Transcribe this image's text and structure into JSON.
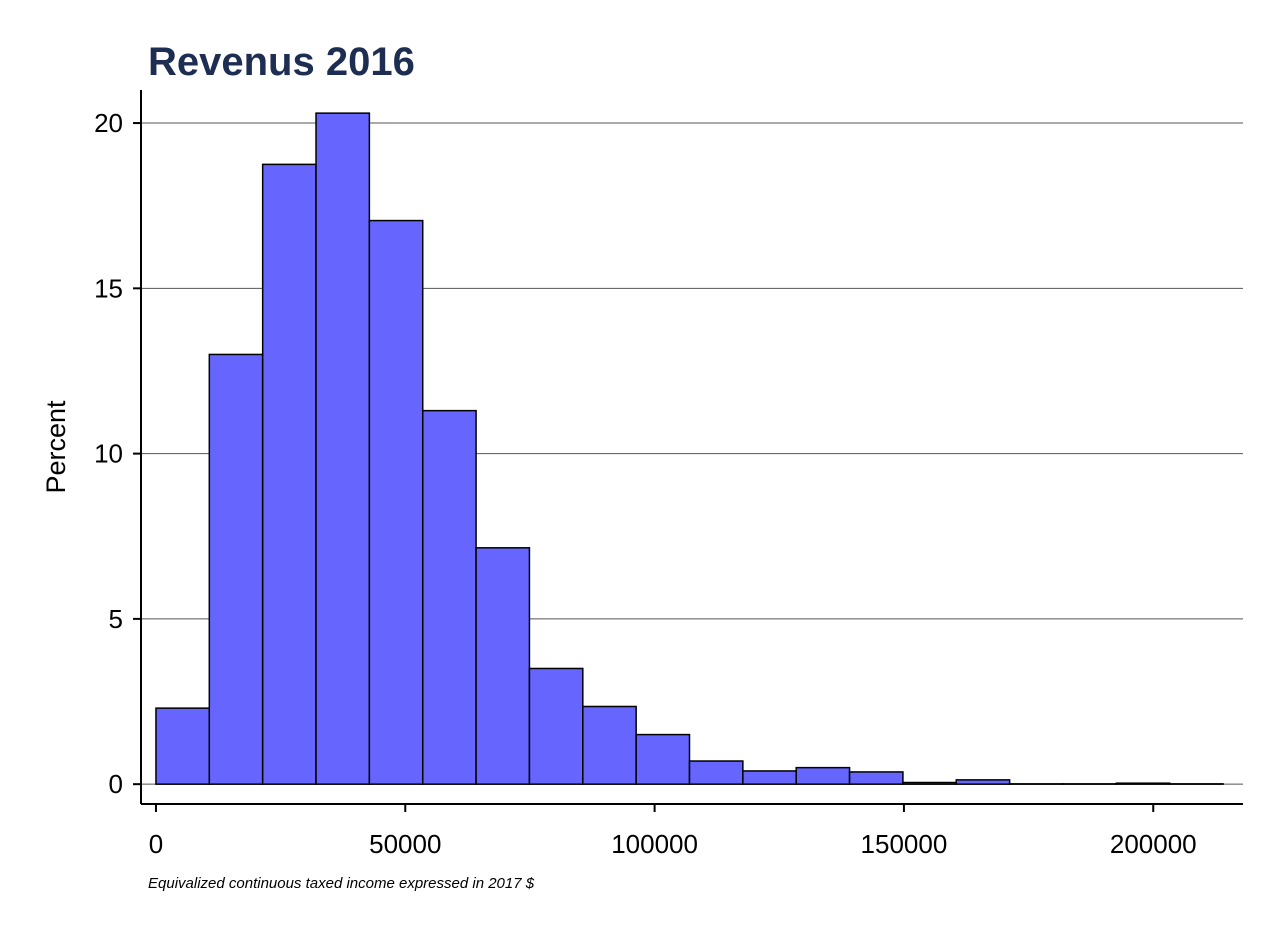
{
  "colors": {
    "bar_fill": "#6666ff",
    "bar_stroke": "#000000",
    "title": "#1e2d52",
    "grid": "#555555",
    "axis": "#000000"
  },
  "chart_data": {
    "type": "bar",
    "title": "Revenus 2016",
    "xlabel": "Equivalized continuous taxed income expressed in 2017 $",
    "ylabel": "Percent",
    "grid": true,
    "x_ticks": [
      0,
      50000,
      100000,
      150000,
      200000
    ],
    "y_ticks": [
      0,
      5,
      10,
      15,
      20
    ],
    "xlim": [
      -3000,
      218000
    ],
    "ylim": [
      -0.6,
      21
    ],
    "bin_width": 10700,
    "bins": [
      {
        "start": 0,
        "value": 2.3
      },
      {
        "start": 10700,
        "value": 13.0
      },
      {
        "start": 21400,
        "value": 18.75
      },
      {
        "start": 32100,
        "value": 20.3
      },
      {
        "start": 42800,
        "value": 17.05
      },
      {
        "start": 53500,
        "value": 11.3
      },
      {
        "start": 64200,
        "value": 7.15
      },
      {
        "start": 74900,
        "value": 3.5
      },
      {
        "start": 85600,
        "value": 2.35
      },
      {
        "start": 96300,
        "value": 1.5
      },
      {
        "start": 107000,
        "value": 0.7
      },
      {
        "start": 117700,
        "value": 0.4
      },
      {
        "start": 128400,
        "value": 0.5
      },
      {
        "start": 139100,
        "value": 0.37
      },
      {
        "start": 149800,
        "value": 0.05
      },
      {
        "start": 160500,
        "value": 0.13
      },
      {
        "start": 171200,
        "value": 0.01
      },
      {
        "start": 181900,
        "value": 0.01
      },
      {
        "start": 192600,
        "value": 0.03
      },
      {
        "start": 203300,
        "value": 0.01
      }
    ]
  }
}
